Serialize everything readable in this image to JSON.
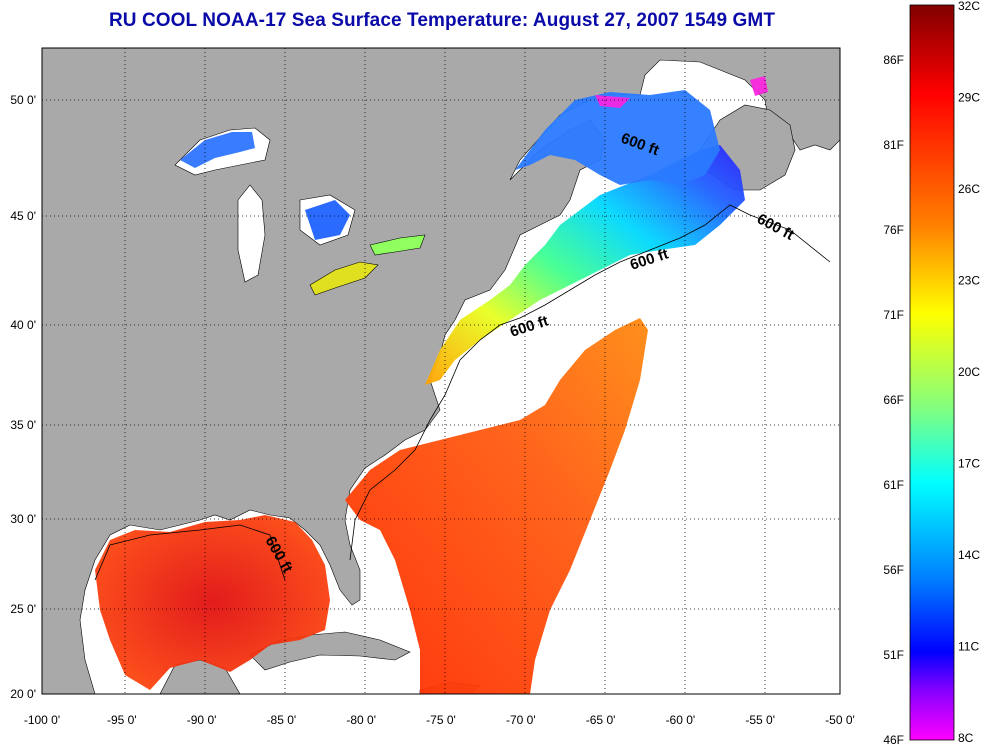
{
  "title": "RU COOL  NOAA-17  Sea Surface Temperature:  August 27, 2007 1549 GMT",
  "map": {
    "lon_range": [
      -100,
      -50
    ],
    "lat_range": [
      20,
      52.5
    ],
    "lon_ticks": [
      "-100 0'",
      "-95 0'",
      "-90 0'",
      "-85 0'",
      "-80 0'",
      "-75 0'",
      "-70 0'",
      "-65 0'",
      "-60 0'",
      "-55 0'",
      "-50 0'"
    ],
    "lat_ticks": [
      "50 0'",
      "45 0'",
      "40 0'",
      "35 0'",
      "30 0'",
      "25 0'",
      "20 0'"
    ],
    "grid": true,
    "contour_label": "600 ft",
    "colors": {
      "land": "#a9a9a9",
      "nodata": "#ffffff",
      "grid": "#000000"
    }
  },
  "colorbar": {
    "celsius_labels": [
      "32C",
      "29C",
      "26C",
      "23C",
      "20C",
      "17C",
      "14C",
      "11C",
      "8C"
    ],
    "fahrenheit_labels": [
      "86F",
      "81F",
      "76F",
      "71F",
      "66F",
      "61F",
      "56F",
      "51F",
      "46F"
    ],
    "stops": [
      "#800000",
      "#ff0000",
      "#ff8000",
      "#ffff00",
      "#80ff80",
      "#00ffff",
      "#0080ff",
      "#0000ff",
      "#8000ff",
      "#ff00ff"
    ]
  }
}
